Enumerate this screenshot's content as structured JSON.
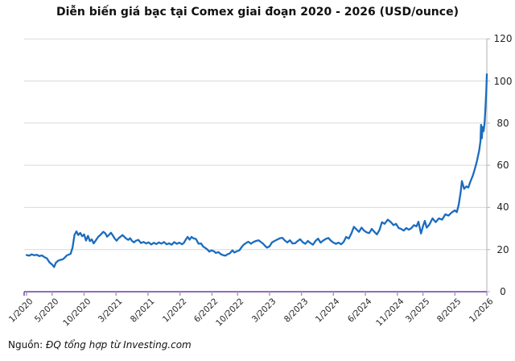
{
  "title": "Diễn biến giá bạc tại Comex giai đoạn 2020 - 2026 (USD/ounce)",
  "source": {
    "prefix": "Nguồn: ",
    "text": "ĐQ tổng hợp từ Investing.com"
  },
  "chart_data": {
    "type": "line",
    "title": "Diễn biến giá bạc tại Comex giai đoạn 2020 - 2026 (USD/ounce)",
    "series_name": "Giá bạc tại Comex (USD/ounce)",
    "x_unit": "months since 1/2020",
    "xlim": [
      0,
      72
    ],
    "ylim": [
      0,
      120
    ],
    "grid": true,
    "legend": "none",
    "y_ticks": [
      0,
      20,
      40,
      60,
      80,
      100,
      120
    ],
    "x_ticks": [
      {
        "label": "1/2020",
        "month": 0
      },
      {
        "label": "5/2020",
        "month": 4
      },
      {
        "label": "10/2020",
        "month": 9
      },
      {
        "label": "3/2021",
        "month": 14
      },
      {
        "label": "8/2021",
        "month": 19
      },
      {
        "label": "1/2022",
        "month": 24
      },
      {
        "label": "6/2022",
        "month": 29
      },
      {
        "label": "10/2022",
        "month": 33
      },
      {
        "label": "3/2023",
        "month": 38
      },
      {
        "label": "8/2023",
        "month": 43
      },
      {
        "label": "1/2024",
        "month": 48
      },
      {
        "label": "6/2024",
        "month": 53
      },
      {
        "label": "11/2024",
        "month": 58
      },
      {
        "label": "3/2025",
        "month": 62
      },
      {
        "label": "8/2025",
        "month": 67
      },
      {
        "label": "1/2026",
        "month": 72
      }
    ],
    "colors": {
      "line": "#1b6cbe",
      "x_axis": "#6a3fa0",
      "x_tick": "#a98fd0",
      "y_axis": "#bfbfbf",
      "grid": "#d9d9d9",
      "text": "#262626"
    },
    "points": [
      [
        0,
        17.4
      ],
      [
        0.4,
        17.1
      ],
      [
        0.8,
        17.7
      ],
      [
        1.2,
        17.3
      ],
      [
        1.6,
        17.5
      ],
      [
        2.0,
        16.9
      ],
      [
        2.4,
        17.2
      ],
      [
        2.8,
        16.4
      ],
      [
        3.2,
        15.8
      ],
      [
        3.6,
        13.9
      ],
      [
        4.0,
        12.9
      ],
      [
        4.3,
        11.7
      ],
      [
        4.6,
        13.8
      ],
      [
        5.0,
        14.8
      ],
      [
        5.3,
        15.1
      ],
      [
        5.7,
        15.4
      ],
      [
        6.0,
        16.3
      ],
      [
        6.3,
        17.2
      ],
      [
        6.6,
        17.6
      ],
      [
        6.9,
        18.0
      ],
      [
        7.2,
        21.0
      ],
      [
        7.5,
        27.0
      ],
      [
        7.8,
        28.6
      ],
      [
        8.1,
        26.9
      ],
      [
        8.4,
        27.9
      ],
      [
        8.7,
        26.3
      ],
      [
        9.0,
        27.2
      ],
      [
        9.3,
        24.3
      ],
      [
        9.6,
        26.5
      ],
      [
        9.9,
        24.0
      ],
      [
        10.2,
        24.8
      ],
      [
        10.5,
        22.9
      ],
      [
        10.8,
        24.2
      ],
      [
        11.2,
        26.0
      ],
      [
        11.6,
        27.1
      ],
      [
        12.0,
        28.4
      ],
      [
        12.3,
        27.8
      ],
      [
        12.6,
        26.1
      ],
      [
        12.9,
        27.0
      ],
      [
        13.2,
        28.0
      ],
      [
        13.5,
        26.6
      ],
      [
        13.8,
        25.2
      ],
      [
        14.1,
        24.2
      ],
      [
        14.4,
        25.4
      ],
      [
        14.7,
        26.1
      ],
      [
        15.0,
        26.9
      ],
      [
        15.3,
        26.0
      ],
      [
        15.6,
        25.2
      ],
      [
        15.9,
        24.6
      ],
      [
        16.2,
        25.4
      ],
      [
        16.5,
        24.1
      ],
      [
        16.8,
        23.4
      ],
      [
        17.1,
        24.2
      ],
      [
        17.5,
        24.6
      ],
      [
        17.9,
        23.1
      ],
      [
        18.3,
        23.6
      ],
      [
        18.7,
        22.9
      ],
      [
        19.1,
        23.4
      ],
      [
        19.5,
        22.4
      ],
      [
        19.9,
        23.2
      ],
      [
        20.3,
        22.6
      ],
      [
        20.7,
        23.4
      ],
      [
        21.1,
        22.8
      ],
      [
        21.5,
        23.6
      ],
      [
        21.9,
        22.5
      ],
      [
        22.3,
        23.0
      ],
      [
        22.7,
        22.3
      ],
      [
        23.1,
        23.5
      ],
      [
        23.5,
        22.7
      ],
      [
        23.9,
        23.3
      ],
      [
        24.3,
        22.5
      ],
      [
        24.6,
        23.1
      ],
      [
        24.9,
        24.7
      ],
      [
        25.2,
        26.0
      ],
      [
        25.5,
        24.7
      ],
      [
        25.8,
        26.0
      ],
      [
        26.1,
        25.3
      ],
      [
        26.5,
        25.0
      ],
      [
        26.9,
        22.8
      ],
      [
        27.3,
        22.9
      ],
      [
        27.6,
        21.5
      ],
      [
        27.9,
        20.9
      ],
      [
        28.3,
        20.0
      ],
      [
        28.6,
        19.0
      ],
      [
        28.9,
        19.6
      ],
      [
        29.3,
        19.2
      ],
      [
        29.6,
        18.4
      ],
      [
        30.0,
        18.8
      ],
      [
        30.4,
        17.8
      ],
      [
        30.8,
        17.3
      ],
      [
        31.1,
        17.1
      ],
      [
        31.4,
        17.7
      ],
      [
        31.8,
        18.2
      ],
      [
        32.2,
        19.6
      ],
      [
        32.5,
        18.6
      ],
      [
        32.9,
        19.2
      ],
      [
        33.3,
        19.6
      ],
      [
        33.7,
        21.4
      ],
      [
        34.0,
        22.4
      ],
      [
        34.4,
        23.2
      ],
      [
        34.7,
        23.7
      ],
      [
        35.1,
        22.8
      ],
      [
        35.5,
        23.6
      ],
      [
        35.9,
        24.1
      ],
      [
        36.3,
        24.4
      ],
      [
        36.6,
        23.7
      ],
      [
        37.0,
        22.8
      ],
      [
        37.3,
        21.8
      ],
      [
        37.6,
        20.9
      ],
      [
        38.0,
        21.5
      ],
      [
        38.4,
        23.4
      ],
      [
        38.8,
        24.1
      ],
      [
        39.2,
        24.7
      ],
      [
        39.6,
        25.3
      ],
      [
        40.0,
        25.6
      ],
      [
        40.4,
        24.3
      ],
      [
        40.8,
        23.4
      ],
      [
        41.2,
        24.4
      ],
      [
        41.6,
        22.9
      ],
      [
        42.0,
        23.0
      ],
      [
        42.4,
        24.0
      ],
      [
        42.8,
        24.9
      ],
      [
        43.2,
        23.5
      ],
      [
        43.6,
        22.7
      ],
      [
        44.0,
        24.1
      ],
      [
        44.4,
        23.1
      ],
      [
        44.8,
        22.3
      ],
      [
        45.2,
        24.1
      ],
      [
        45.6,
        25.2
      ],
      [
        46.0,
        23.3
      ],
      [
        46.4,
        24.3
      ],
      [
        46.8,
        25.0
      ],
      [
        47.2,
        25.5
      ],
      [
        47.6,
        24.2
      ],
      [
        48.0,
        23.3
      ],
      [
        48.4,
        22.7
      ],
      [
        48.8,
        23.3
      ],
      [
        49.2,
        22.5
      ],
      [
        49.6,
        23.6
      ],
      [
        50.0,
        26.0
      ],
      [
        50.4,
        25.2
      ],
      [
        50.8,
        27.6
      ],
      [
        51.2,
        30.8
      ],
      [
        51.6,
        29.6
      ],
      [
        52.0,
        28.4
      ],
      [
        52.4,
        30.4
      ],
      [
        52.8,
        29.0
      ],
      [
        53.2,
        28.2
      ],
      [
        53.6,
        27.8
      ],
      [
        54.0,
        29.8
      ],
      [
        54.4,
        28.4
      ],
      [
        54.8,
        27.2
      ],
      [
        55.2,
        29.2
      ],
      [
        55.6,
        33.0
      ],
      [
        56.0,
        32.2
      ],
      [
        56.5,
        34.2
      ],
      [
        57.0,
        33.0
      ],
      [
        57.4,
        31.6
      ],
      [
        57.8,
        32.2
      ],
      [
        58.2,
        30.2
      ],
      [
        58.6,
        29.8
      ],
      [
        59.0,
        29.0
      ],
      [
        59.4,
        30.2
      ],
      [
        59.8,
        29.4
      ],
      [
        60.2,
        30.2
      ],
      [
        60.6,
        31.6
      ],
      [
        61.0,
        31.0
      ],
      [
        61.3,
        33.2
      ],
      [
        61.7,
        27.6
      ],
      [
        62.0,
        31.0
      ],
      [
        62.3,
        33.6
      ],
      [
        62.6,
        30.4
      ],
      [
        63.0,
        31.8
      ],
      [
        63.5,
        34.8
      ],
      [
        64.0,
        33.0
      ],
      [
        64.5,
        34.8
      ],
      [
        65.0,
        34.2
      ],
      [
        65.5,
        36.7
      ],
      [
        66.0,
        36.1
      ],
      [
        66.5,
        37.6
      ],
      [
        67.0,
        38.6
      ],
      [
        67.3,
        37.8
      ],
      [
        67.6,
        41.2
      ],
      [
        67.9,
        47.0
      ],
      [
        68.1,
        52.5
      ],
      [
        68.45,
        48.8
      ],
      [
        68.8,
        50.0
      ],
      [
        69.1,
        49.4
      ],
      [
        69.4,
        52.0
      ],
      [
        69.8,
        55.0
      ],
      [
        70.1,
        58.0
      ],
      [
        70.45,
        62.0
      ],
      [
        70.8,
        67.0
      ],
      [
        71.0,
        71.5
      ],
      [
        71.1,
        79.2
      ],
      [
        71.22,
        72.8
      ],
      [
        71.35,
        78.2
      ],
      [
        71.5,
        76.2
      ],
      [
        71.65,
        80.0
      ],
      [
        71.8,
        88.0
      ],
      [
        71.92,
        96.0
      ],
      [
        72,
        103.2
      ]
    ]
  }
}
